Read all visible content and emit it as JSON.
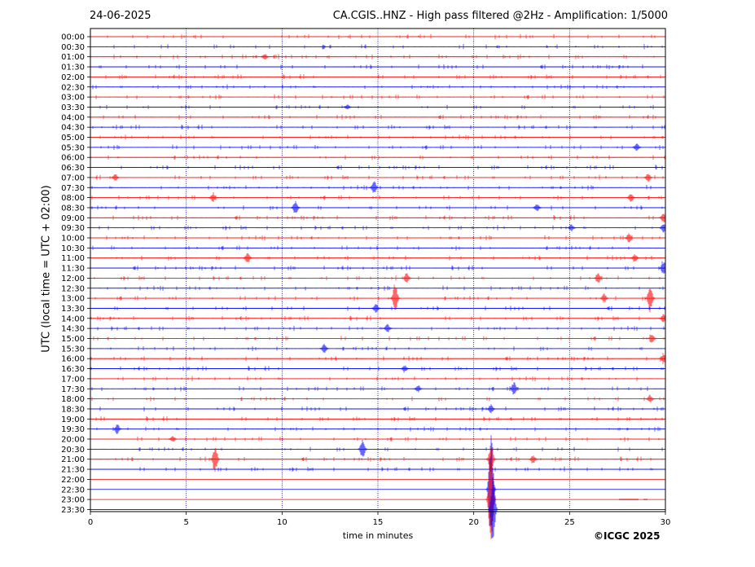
{
  "header": {
    "date": "24-06-2025",
    "title": "CA.CGIS..HNZ - High pass filtered @2Hz - Amplification: 1/5000"
  },
  "footer": {
    "copyright": "©ICGC 2025"
  },
  "colors": {
    "red_trace": "#ff0000",
    "blue_trace": "#0000ff",
    "grid": "#000080"
  },
  "chart_data": {
    "type": "line",
    "title": "CA.CGIS..HNZ - High pass filtered @2Hz - Amplification: 1/5000",
    "xlabel": "time in minutes",
    "ylabel": "UTC (local time = UTC + 02:00)",
    "xlim": [
      0,
      30
    ],
    "xticks": [
      0,
      5,
      10,
      15,
      20,
      25,
      30
    ],
    "vertical_grid": [
      5,
      10,
      15,
      20,
      25
    ],
    "row_labels": [
      "00:00",
      "00:30",
      "01:00",
      "01:30",
      "02:00",
      "02:30",
      "03:00",
      "03:30",
      "04:00",
      "04:30",
      "05:00",
      "05:30",
      "06:00",
      "06:30",
      "07:00",
      "07:30",
      "08:00",
      "08:30",
      "09:00",
      "09:30",
      "10:00",
      "10:30",
      "11:00",
      "11:30",
      "12:00",
      "12:30",
      "13:00",
      "13:30",
      "14:00",
      "14:30",
      "15:00",
      "15:30",
      "16:00",
      "16:30",
      "17:00",
      "17:30",
      "18:00",
      "18:30",
      "19:00",
      "19:30",
      "20:00",
      "20:30",
      "21:00",
      "21:30",
      "22:00",
      "22:30",
      "23:00",
      "23:30"
    ],
    "row_color_pattern": [
      "red",
      "blue"
    ],
    "quiet_rows_after": "22:00",
    "events": [
      {
        "row": "01:00",
        "minute": 9.1,
        "amp": 0.3
      },
      {
        "row": "03:30",
        "minute": 13.4,
        "amp": 0.25
      },
      {
        "row": "05:30",
        "minute": 28.5,
        "amp": 0.4
      },
      {
        "row": "07:00",
        "minute": 1.3,
        "amp": 0.35
      },
      {
        "row": "07:00",
        "minute": 29.1,
        "amp": 0.45
      },
      {
        "row": "07:30",
        "minute": 14.8,
        "amp": 0.7
      },
      {
        "row": "08:00",
        "minute": 6.4,
        "amp": 0.4
      },
      {
        "row": "08:00",
        "minute": 28.2,
        "amp": 0.45
      },
      {
        "row": "08:30",
        "minute": 10.7,
        "amp": 0.7
      },
      {
        "row": "08:30",
        "minute": 23.3,
        "amp": 0.4
      },
      {
        "row": "09:00",
        "minute": 29.9,
        "amp": 0.5
      },
      {
        "row": "09:30",
        "minute": 25.1,
        "amp": 0.35
      },
      {
        "row": "09:30",
        "minute": 29.9,
        "amp": 0.45
      },
      {
        "row": "10:00",
        "minute": 28.1,
        "amp": 0.45
      },
      {
        "row": "11:00",
        "minute": 8.2,
        "amp": 0.55
      },
      {
        "row": "11:00",
        "minute": 28.4,
        "amp": 0.45
      },
      {
        "row": "11:30",
        "minute": 29.9,
        "amp": 0.7
      },
      {
        "row": "12:00",
        "minute": 16.5,
        "amp": 0.55
      },
      {
        "row": "12:00",
        "minute": 26.5,
        "amp": 0.5
      },
      {
        "row": "13:00",
        "minute": 15.9,
        "amp": 1.6
      },
      {
        "row": "13:00",
        "minute": 29.2,
        "amp": 1.4
      },
      {
        "row": "13:00",
        "minute": 26.8,
        "amp": 0.45
      },
      {
        "row": "13:30",
        "minute": 14.9,
        "amp": 0.5
      },
      {
        "row": "14:00",
        "minute": 29.9,
        "amp": 0.45
      },
      {
        "row": "14:30",
        "minute": 15.5,
        "amp": 0.45
      },
      {
        "row": "15:00",
        "minute": 29.3,
        "amp": 0.45
      },
      {
        "row": "15:30",
        "minute": 12.2,
        "amp": 0.5
      },
      {
        "row": "16:00",
        "minute": 29.9,
        "amp": 0.45
      },
      {
        "row": "16:30",
        "minute": 16.4,
        "amp": 0.35
      },
      {
        "row": "17:30",
        "minute": 17.1,
        "amp": 0.35
      },
      {
        "row": "17:30",
        "minute": 22.1,
        "amp": 0.7
      },
      {
        "row": "18:00",
        "minute": 29.2,
        "amp": 0.4
      },
      {
        "row": "18:30",
        "minute": 20.9,
        "amp": 0.45
      },
      {
        "row": "19:30",
        "minute": 1.4,
        "amp": 0.5
      },
      {
        "row": "20:00",
        "minute": 4.3,
        "amp": 0.3
      },
      {
        "row": "20:30",
        "minute": 14.2,
        "amp": 1.0
      },
      {
        "row": "21:00",
        "minute": 6.5,
        "amp": 1.3
      },
      {
        "row": "21:00",
        "minute": 23.1,
        "amp": 0.4
      },
      {
        "row": "21:00",
        "minute": 20.9,
        "amp": 1.6
      },
      {
        "row": "22:30",
        "minute": 20.9,
        "amp": 6.0
      },
      {
        "row": "23:00",
        "minute": 20.9,
        "amp": 6.0
      },
      {
        "row": "23:30",
        "minute": 21.0,
        "amp": 4.0
      }
    ]
  }
}
